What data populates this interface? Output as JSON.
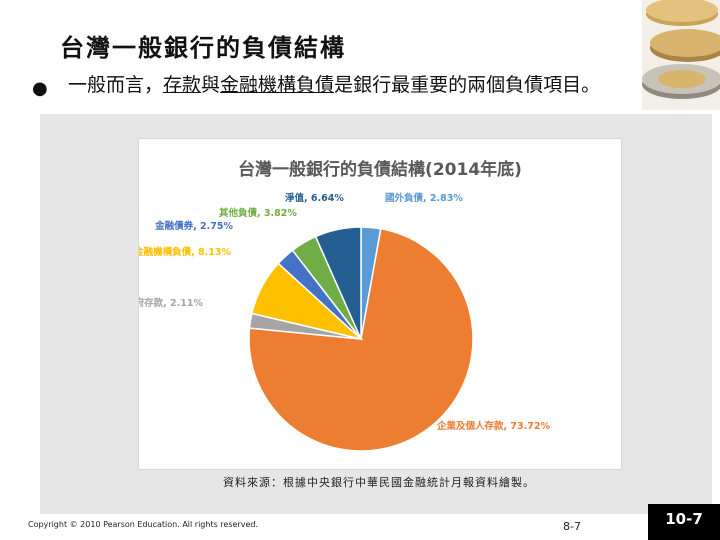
{
  "slide": {
    "title": "台灣一般銀行的負債結構",
    "bullet_parts": [
      "一般而言，",
      "存款",
      "與",
      "金融機構負債",
      "是銀行最重要的兩個負債項目。"
    ],
    "source_note": "資料來源：根據中央銀行中華民國金融統計月報資料繪製。",
    "copyright": "Copyright © 2010 Pearson Education. All rights reserved.",
    "page_number": "8-7",
    "chapter_badge": "10-7"
  },
  "chart_data": {
    "type": "pie",
    "title": "台灣一般銀行的負債結構(2014年底)",
    "slices": [
      {
        "label": "國外負債",
        "value": 2.83,
        "value_label": "2.83%",
        "color": "#5b9bd5"
      },
      {
        "label": "企業及個人存款",
        "value": 73.72,
        "value_label": "73.72%",
        "color": "#ed7d31"
      },
      {
        "label": "政府存款",
        "value": 2.11,
        "value_label": "2.11%",
        "color": "#a5a5a5"
      },
      {
        "label": "對金融機構負債",
        "value": 8.13,
        "value_label": "8.13%",
        "color": "#ffc000"
      },
      {
        "label": "金融債券",
        "value": 2.75,
        "value_label": "2.75%",
        "color": "#4472c4"
      },
      {
        "label": "其他負債",
        "value": 3.82,
        "value_label": "3.82%",
        "color": "#70ad47"
      },
      {
        "label": "淨值",
        "value": 6.64,
        "value_label": "6.64%",
        "color": "#255e91"
      }
    ]
  }
}
